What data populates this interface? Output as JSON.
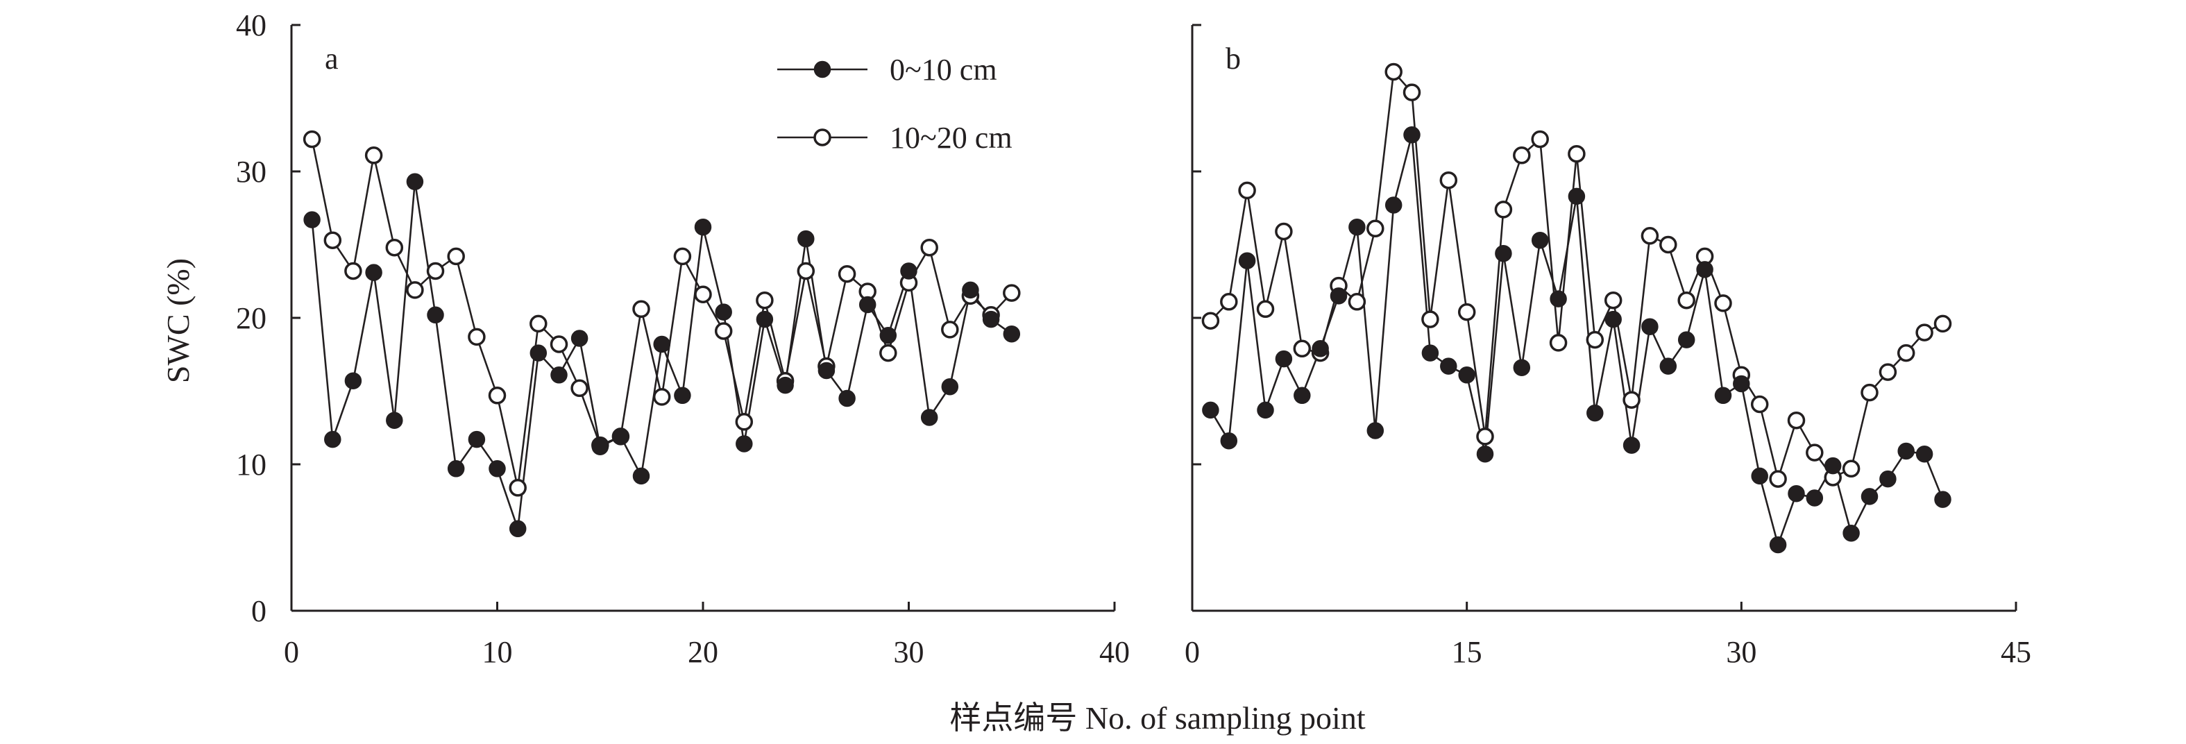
{
  "chart_data": [
    {
      "type": "line",
      "panel_label": "a",
      "ylabel": "SWC (%)",
      "xlim": [
        0,
        40
      ],
      "ylim": [
        0,
        40
      ],
      "xticks": [
        0,
        10,
        20,
        30,
        40
      ],
      "yticks": [
        0,
        10,
        20,
        30,
        40
      ],
      "grid": false,
      "legend_position": "top-center",
      "series": [
        {
          "name": "0~10 cm",
          "marker": "filled-circle",
          "x": [
            1,
            2,
            3,
            4,
            5,
            6,
            7,
            8,
            9,
            10,
            11,
            12,
            13,
            14,
            15,
            16,
            17,
            18,
            19,
            20,
            21,
            22,
            23,
            24,
            25,
            26,
            27,
            28,
            29,
            30,
            31,
            32,
            33,
            34,
            35
          ],
          "y": [
            26.7,
            11.7,
            15.7,
            23.1,
            13.0,
            29.3,
            20.2,
            9.7,
            11.7,
            9.7,
            5.6,
            17.6,
            16.1,
            18.6,
            11.2,
            11.9,
            9.2,
            18.2,
            14.7,
            26.2,
            20.4,
            11.4,
            19.9,
            15.4,
            25.4,
            16.4,
            14.5,
            20.9,
            18.8,
            23.2,
            13.2,
            15.3,
            21.9,
            19.9,
            18.9
          ]
        },
        {
          "name": "10~20 cm",
          "marker": "open-circle",
          "x": [
            1,
            2,
            3,
            4,
            5,
            6,
            7,
            8,
            9,
            10,
            11,
            12,
            13,
            14,
            15,
            16,
            17,
            18,
            19,
            20,
            21,
            22,
            23,
            24,
            25,
            26,
            27,
            28,
            29,
            30,
            31,
            32,
            33,
            34,
            35
          ],
          "y": [
            32.2,
            25.3,
            23.2,
            31.1,
            24.8,
            21.9,
            23.2,
            24.2,
            18.7,
            14.7,
            8.4,
            19.6,
            18.2,
            15.2,
            11.3,
            11.9,
            20.6,
            14.6,
            24.2,
            21.6,
            19.1,
            12.9,
            21.2,
            15.7,
            23.2,
            16.7,
            23.0,
            21.8,
            17.6,
            22.4,
            24.8,
            19.2,
            21.5,
            20.2,
            21.7
          ]
        }
      ]
    },
    {
      "type": "line",
      "panel_label": "b",
      "ylabel": "",
      "xlim": [
        0,
        45
      ],
      "ylim": [
        0,
        40
      ],
      "xticks": [
        0,
        15,
        30,
        45
      ],
      "yticks": [
        0,
        10,
        20,
        30,
        40
      ],
      "grid": false,
      "series": [
        {
          "name": "0~10 cm",
          "marker": "filled-circle",
          "x": [
            1,
            2,
            3,
            4,
            5,
            6,
            7,
            8,
            9,
            10,
            11,
            12,
            13,
            14,
            15,
            16,
            17,
            18,
            19,
            20,
            21,
            22,
            23,
            24,
            25,
            26,
            27,
            28,
            29,
            30,
            31,
            32,
            33,
            34,
            35,
            36,
            37,
            38,
            39,
            40,
            41
          ],
          "y": [
            13.7,
            11.6,
            23.9,
            13.7,
            17.2,
            14.7,
            17.9,
            21.5,
            26.2,
            12.3,
            27.7,
            32.5,
            17.6,
            16.7,
            16.1,
            10.7,
            24.4,
            16.6,
            25.3,
            21.3,
            28.3,
            13.5,
            19.9,
            11.3,
            19.4,
            16.7,
            18.5,
            23.3,
            14.7,
            15.5,
            9.2,
            4.5,
            8.0,
            7.7,
            9.9,
            5.3,
            7.8,
            9.0,
            10.9,
            10.7,
            7.6
          ]
        },
        {
          "name": "10~20 cm",
          "marker": "open-circle",
          "x": [
            1,
            2,
            3,
            4,
            5,
            6,
            7,
            8,
            9,
            10,
            11,
            12,
            13,
            14,
            15,
            16,
            17,
            18,
            19,
            20,
            21,
            22,
            23,
            24,
            25,
            26,
            27,
            28,
            29,
            30,
            31,
            32,
            33,
            34,
            35,
            36,
            37,
            38,
            39,
            40,
            41
          ],
          "y": [
            19.8,
            21.1,
            28.7,
            20.6,
            25.9,
            17.9,
            17.6,
            22.2,
            21.1,
            26.1,
            36.8,
            35.4,
            19.9,
            29.4,
            20.4,
            11.9,
            27.4,
            31.1,
            32.2,
            18.3,
            31.2,
            18.5,
            21.2,
            14.4,
            25.6,
            25.0,
            21.2,
            24.2,
            21.0,
            16.1,
            14.1,
            9.0,
            13.0,
            10.8,
            9.1,
            9.7,
            14.9,
            16.3,
            17.6,
            19.0,
            19.6
          ]
        }
      ]
    }
  ],
  "figure": {
    "xlabel": "样点编号 No. of sampling point"
  }
}
